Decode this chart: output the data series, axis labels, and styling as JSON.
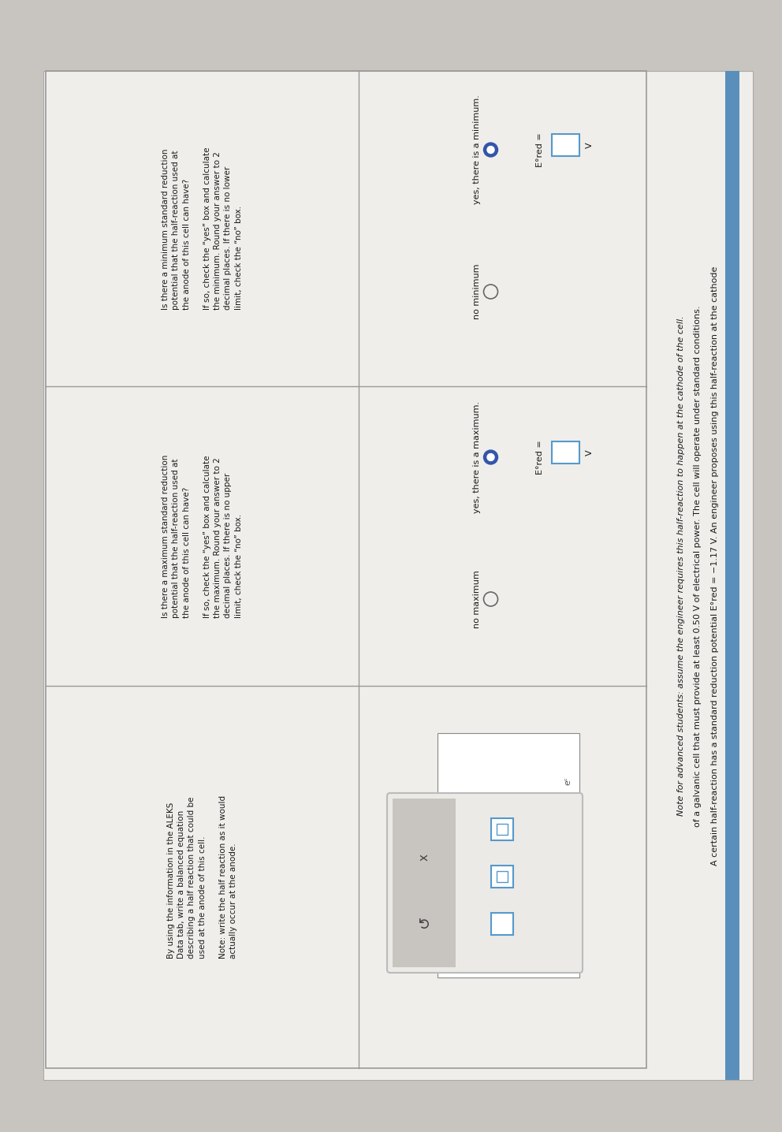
{
  "bg_color": "#c8c5c0",
  "page_color": "#f0eeeb",
  "table_line_color": "#999999",
  "text_color": "#1a1a1a",
  "blue_bar_color": "#5b8fbb",
  "radio_fill_color": "#3355aa",
  "input_box_color": "#5599cc",
  "popup_bg": "#e8e5e0",
  "popup_bar_color": "#c0c0c0",
  "header1": "A certain half-reaction has a standard reduction potential E°red = −1.17 V. An engineer proposes using this half-reaction at the cathode",
  "header2": "of a galvanic cell that must provide at least 0.50 V of electrical power. The cell will operate under standard conditions.",
  "header3": "Note for advanced students: assume the engineer requires this half-reaction to happen at the cathode of the cell.",
  "q1": "Is there a minimum standard reduction\npotential that the half-reaction used at\nthe anode of this cell can have?\n\nIf so, check the “yes” box and calculate\nthe minimum. Round your answer to 2\ndecimal places. If there is no lower\nlimit, check the “no” box.",
  "q2": "Is there a maximum standard reduction\npotential that the half-reaction used at\nthe anode of this cell can have?\n\nIf so, check the “yes” box and calculate\nthe maximum. Round your answer to 2\ndecimal places. If there is no upper\nlimit, check the “no” box.",
  "q3": "By using the information in the ALEKS\nData tab, write a balanced equation\ndescribing a half reaction that could be\nused at the anode of this cell.\n\nNote: write the half reaction as it would\nactually occur at the anode.",
  "a1_yes": "yes, there is a minimum.",
  "a1_no": "no minimum",
  "a2_yes": "yes, there is a maximum.",
  "a2_no": "no maximum",
  "ered_label": "E°red =",
  "v_label": "V",
  "R": 90,
  "fs_header": 8.0,
  "fs_body": 7.5,
  "fs_ans": 8.0
}
